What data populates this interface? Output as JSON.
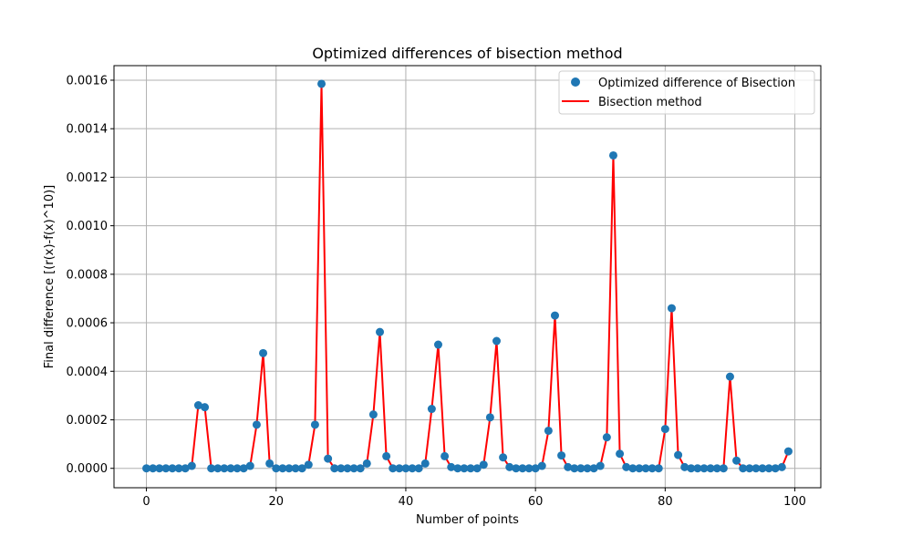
{
  "chart_data": {
    "type": "line",
    "title": "Optimized differences of bisection method",
    "xlabel": "Number of points",
    "ylabel": "Final difference [(r(x)-f(x)^10)]",
    "xlim": [
      -5,
      104
    ],
    "ylim": [
      -8e-05,
      0.00166
    ],
    "x_ticks": [
      0,
      20,
      40,
      60,
      80,
      100
    ],
    "x_tick_labels": [
      "0",
      "20",
      "40",
      "60",
      "80",
      "100"
    ],
    "y_ticks": [
      0,
      0.0002,
      0.0004,
      0.0006,
      0.0008,
      0.001,
      0.0012,
      0.0014,
      0.0016
    ],
    "y_tick_labels": [
      "0.0000",
      "0.0002",
      "0.0004",
      "0.0006",
      "0.0008",
      "0.0010",
      "0.0012",
      "0.0014",
      "0.0016"
    ],
    "grid": true,
    "legend_position": "upper right",
    "x": [
      0,
      1,
      2,
      3,
      4,
      5,
      6,
      7,
      8,
      9,
      10,
      11,
      12,
      13,
      14,
      15,
      16,
      17,
      18,
      19,
      20,
      21,
      22,
      23,
      24,
      25,
      26,
      27,
      28,
      29,
      30,
      31,
      32,
      33,
      34,
      35,
      36,
      37,
      38,
      39,
      40,
      41,
      42,
      43,
      44,
      45,
      46,
      47,
      48,
      49,
      50,
      51,
      52,
      53,
      54,
      55,
      56,
      57,
      58,
      59,
      60,
      61,
      62,
      63,
      64,
      65,
      66,
      67,
      68,
      69,
      70,
      71,
      72,
      73,
      74,
      75,
      76,
      77,
      78,
      79,
      80,
      81,
      82,
      83,
      84,
      85,
      86,
      87,
      88,
      89,
      90,
      91,
      92,
      93,
      94,
      95,
      96,
      97,
      98,
      99
    ],
    "series": [
      {
        "name": "Optimized difference of Bisection",
        "kind": "scatter",
        "color": "#1f77b4",
        "values": [
          0,
          0,
          0,
          0,
          0,
          0,
          0,
          1e-05,
          0.00026,
          0.000252,
          0,
          0,
          0,
          0,
          0,
          0,
          1e-05,
          0.00018,
          0.000475,
          2e-05,
          0,
          0,
          0,
          0,
          0,
          1.5e-05,
          0.00018,
          0.001585,
          4e-05,
          0,
          0,
          0,
          0,
          0,
          2e-05,
          0.000222,
          0.000562,
          5e-05,
          0,
          0,
          0,
          0,
          0,
          2e-05,
          0.000245,
          0.00051,
          5e-05,
          5e-06,
          0,
          0,
          0,
          0,
          1.5e-05,
          0.00021,
          0.000525,
          4.5e-05,
          5e-06,
          0,
          0,
          0,
          0,
          1e-05,
          0.000155,
          0.00063,
          5.3e-05,
          5e-06,
          0,
          0,
          0,
          0,
          1e-05,
          0.000128,
          0.00129,
          6e-05,
          5e-06,
          0,
          0,
          0,
          0,
          0,
          0.000162,
          0.00066,
          5.5e-05,
          5e-06,
          0,
          0,
          0,
          0,
          0,
          0,
          0.000378,
          3.2e-05,
          0,
          0,
          0,
          0,
          0,
          0,
          5e-06,
          7e-05
        ]
      },
      {
        "name": "Bisection method",
        "kind": "line",
        "color": "#ff0000",
        "values": [
          0,
          0,
          0,
          0,
          0,
          0,
          0,
          1e-05,
          0.00026,
          0.000252,
          0,
          0,
          0,
          0,
          0,
          0,
          1e-05,
          0.00018,
          0.000475,
          2e-05,
          0,
          0,
          0,
          0,
          0,
          1.5e-05,
          0.00018,
          0.001585,
          4e-05,
          0,
          0,
          0,
          0,
          0,
          2e-05,
          0.000222,
          0.000562,
          5e-05,
          0,
          0,
          0,
          0,
          0,
          2e-05,
          0.000245,
          0.00051,
          5e-05,
          5e-06,
          0,
          0,
          0,
          0,
          1.5e-05,
          0.00021,
          0.000525,
          4.5e-05,
          5e-06,
          0,
          0,
          0,
          0,
          1e-05,
          0.000155,
          0.00063,
          5.3e-05,
          5e-06,
          0,
          0,
          0,
          0,
          1e-05,
          0.000128,
          0.00129,
          6e-05,
          5e-06,
          0,
          0,
          0,
          0,
          0,
          0.000162,
          0.00066,
          5.5e-05,
          5e-06,
          0,
          0,
          0,
          0,
          0,
          0,
          0.000378,
          3.2e-05,
          0,
          0,
          0,
          0,
          0,
          0,
          5e-06,
          7e-05
        ]
      }
    ]
  }
}
